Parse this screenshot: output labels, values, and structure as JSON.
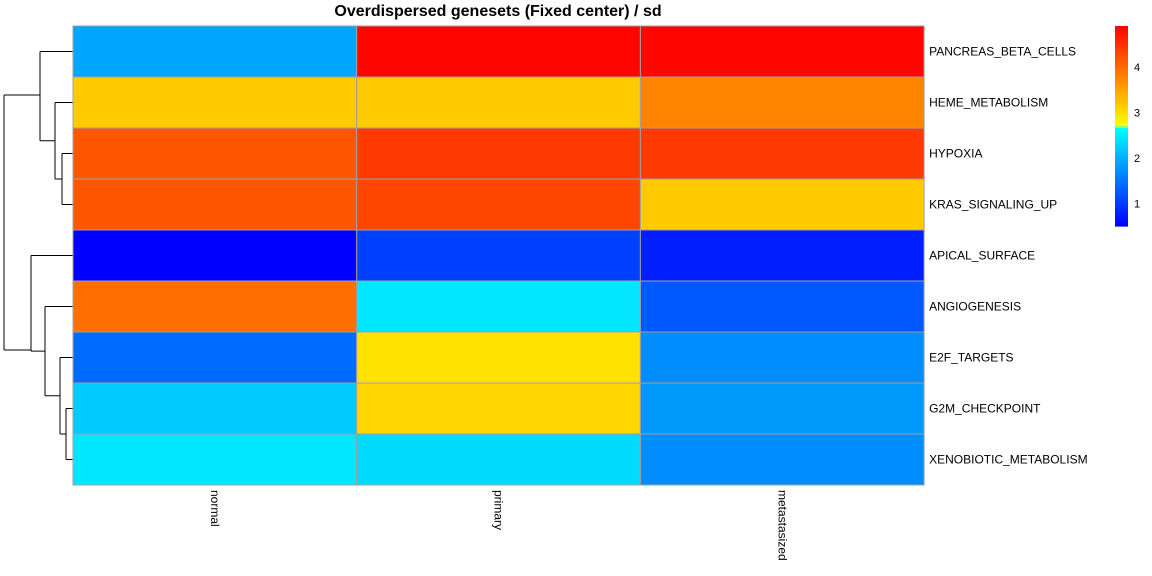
{
  "chart_data": {
    "type": "heatmap",
    "title": "Overdispersed genesets (Fixed center) / sd",
    "columns": [
      "normal",
      "primary",
      "metastasized"
    ],
    "rows": [
      "PANCREAS_BETA_CELLS",
      "HEME_METABOLISM",
      "HYPOXIA",
      "KRAS_SIGNALING_UP",
      "APICAL_SURFACE",
      "ANGIOGENESIS",
      "E2F_TARGETS",
      "G2M_CHECKPOINT",
      "XENOBIOTIC_METABOLISM"
    ],
    "values": [
      [
        1.9,
        4.85,
        4.85
      ],
      [
        3.15,
        3.15,
        3.75
      ],
      [
        4.15,
        4.4,
        4.4
      ],
      [
        4.15,
        4.3,
        3.15
      ],
      [
        0.5,
        1.05,
        0.75
      ],
      [
        3.95,
        2.45,
        1.25
      ],
      [
        1.4,
        2.95,
        1.7
      ],
      [
        2.2,
        3.05,
        1.8
      ],
      [
        2.45,
        2.35,
        1.7
      ]
    ],
    "color_scale": {
      "min": 0.5,
      "max": 4.9,
      "stops": [
        {
          "value": 0.5,
          "color": "#0000ff"
        },
        {
          "value": 2.65,
          "color": "#00ffff"
        },
        {
          "value": 2.7,
          "color": "#ffff00"
        },
        {
          "value": 4.9,
          "color": "#ff0000"
        }
      ]
    },
    "legend": {
      "position": "right",
      "ticks": [
        1,
        2,
        3,
        4
      ]
    },
    "dendrogram": "rows",
    "grid": true
  }
}
